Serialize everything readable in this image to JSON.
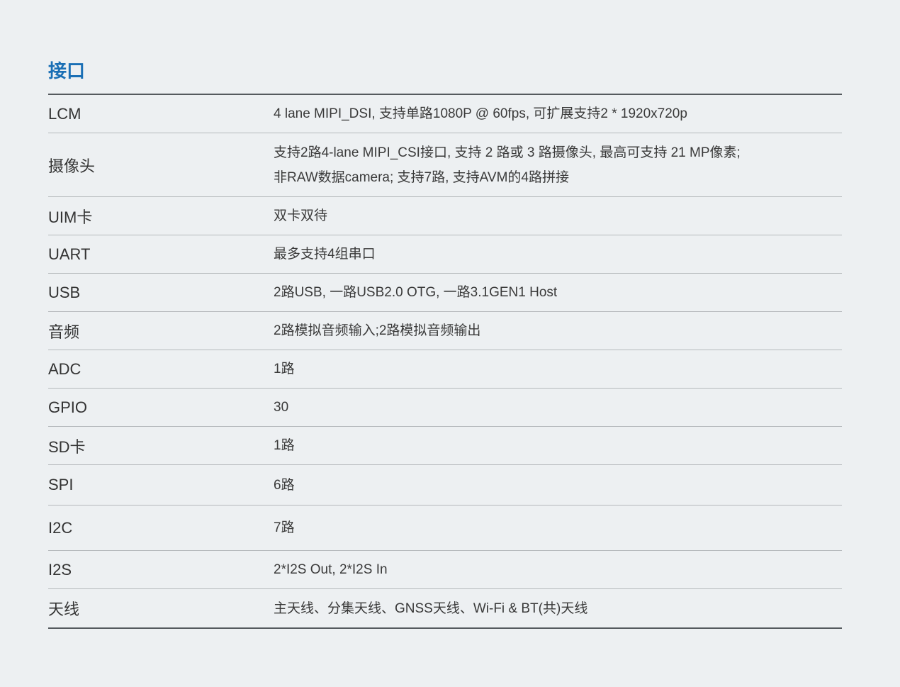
{
  "title": "接口",
  "rows": [
    {
      "label": "LCM",
      "value": [
        "4 lane MIPI_DSI, 支持单路1080P @ 60fps, 可扩展支持2 * 1920x720p"
      ]
    },
    {
      "label": "摄像头",
      "value": [
        "支持2路4-lane MIPI_CSI接口, 支持 2 路或 3 路摄像头, 最高可支持 21 MP像素;",
        "非RAW数据camera; 支持7路, 支持AVM的4路拼接"
      ]
    },
    {
      "label": "UIM卡",
      "value": [
        "双卡双待"
      ]
    },
    {
      "label": "UART",
      "value": [
        "最多支持4组串口"
      ]
    },
    {
      "label": "USB",
      "value": [
        "2路USB, 一路USB2.0 OTG, 一路3.1GEN1 Host"
      ]
    },
    {
      "label": "音频",
      "value": [
        "2路模拟音频输入;2路模拟音频输出"
      ]
    },
    {
      "label": "ADC",
      "value": [
        "1路"
      ]
    },
    {
      "label": "GPIO",
      "value": [
        "30"
      ]
    },
    {
      "label": "SD卡",
      "value": [
        "1路"
      ]
    },
    {
      "label": "SPI",
      "value": [
        "6路"
      ]
    },
    {
      "label": "I2C",
      "value": [
        "7路"
      ]
    },
    {
      "label": "I2S",
      "value": [
        "2*I2S Out, 2*I2S In"
      ]
    },
    {
      "label": "天线",
      "value": [
        "主天线、分集天线、GNSS天线、Wi-Fi & BT(共)天线"
      ]
    }
  ]
}
